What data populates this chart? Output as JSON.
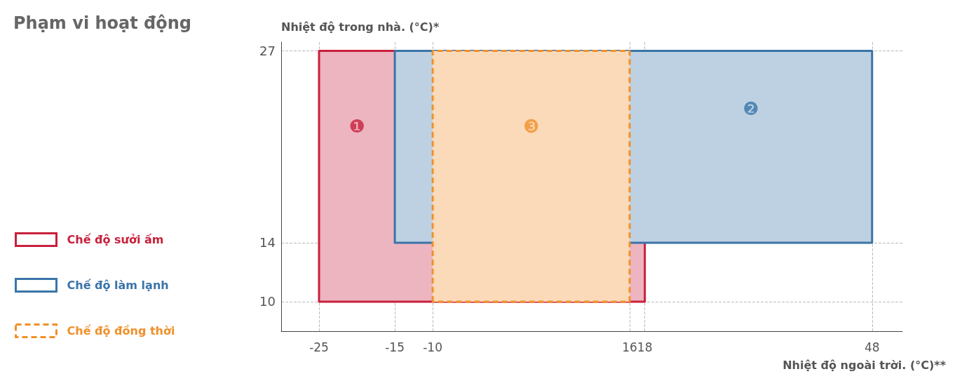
{
  "chart_data": {
    "type": "area",
    "title": "Phạm vi hoạt động",
    "ylabel": "Nhiệt độ trong nhà. (°C)*",
    "xlabel": "Nhiệt độ ngoài trời. (°C)**",
    "xlim": [
      -30,
      52
    ],
    "xticks": [
      -25,
      -15,
      -10,
      16,
      18,
      48
    ],
    "ylim": [
      8,
      27.6
    ],
    "yticks": [
      10,
      14,
      27
    ],
    "grid": true,
    "legend": "left",
    "marker": "none",
    "series": [
      {
        "name": "Chế độ sưởi ấm",
        "color": "#c8203c",
        "x": [
          -25,
          -25,
          18,
          18,
          -25
        ],
        "values": [
          10,
          27,
          27,
          10,
          10
        ]
      },
      {
        "name": "Chế độ làm lạnh",
        "color": "#3a74a8",
        "x": [
          -15,
          -15,
          48,
          48,
          -15
        ],
        "values": [
          14,
          27,
          27,
          14,
          14
        ]
      },
      {
        "name": "Chế độ đồng thời",
        "color": "#f0902a",
        "line_style": "dashed",
        "x": [
          -10,
          -10,
          16,
          16,
          -10
        ],
        "values": [
          10,
          27,
          27,
          10,
          10
        ]
      }
    ],
    "annotations": [
      "❶",
      "❷",
      "❸"
    ]
  }
}
